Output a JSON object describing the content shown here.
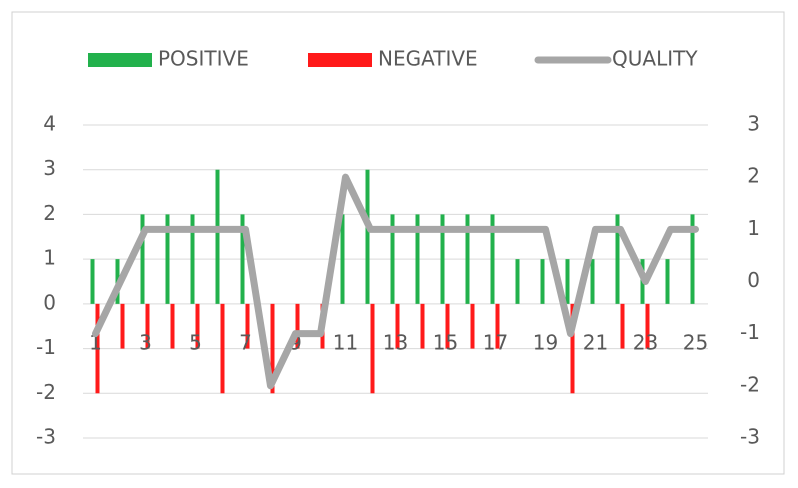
{
  "chart_data": {
    "type": "bar-line",
    "categories": [
      "1",
      null,
      "3",
      null,
      "5",
      null,
      "7",
      null,
      "9",
      null,
      "11",
      null,
      "13",
      null,
      "15",
      null,
      "17",
      null,
      "19",
      null,
      "21",
      null,
      "23",
      null,
      "25"
    ],
    "series": [
      {
        "name": "POSITIVE",
        "type": "bar",
        "color": "#22b14c",
        "values": [
          1,
          1,
          2,
          2,
          2,
          3,
          2,
          0,
          0,
          0,
          2,
          3,
          2,
          2,
          2,
          2,
          2,
          1,
          1,
          1,
          1,
          2,
          1,
          1,
          2
        ]
      },
      {
        "name": "NEGATIVE",
        "type": "bar",
        "color": "#ff1a1a",
        "values": [
          -2,
          -1,
          -1,
          -1,
          -1,
          -2,
          -1,
          -2,
          -1,
          -1,
          0,
          -2,
          -1,
          -1,
          -1,
          -1,
          -1,
          0,
          0,
          -2,
          0,
          -1,
          -1,
          0,
          0
        ]
      },
      {
        "name": "QUALITY",
        "type": "line",
        "axis": "y2",
        "color": "#a6a6a6",
        "values": [
          -1,
          0,
          1,
          1,
          1,
          1,
          1,
          -2,
          -1,
          -1,
          2,
          1,
          1,
          1,
          1,
          1,
          1,
          1,
          1,
          -1,
          1,
          1,
          0,
          1,
          1
        ]
      }
    ],
    "ylim": [
      -3,
      4
    ],
    "yticks": [
      -3,
      -2,
      -1,
      0,
      1,
      2,
      3,
      4
    ],
    "y2lim": [
      -3,
      3
    ],
    "y2ticks": [
      -3,
      -2,
      -1,
      0,
      1,
      2,
      3
    ],
    "grid": true,
    "legend": "top"
  }
}
